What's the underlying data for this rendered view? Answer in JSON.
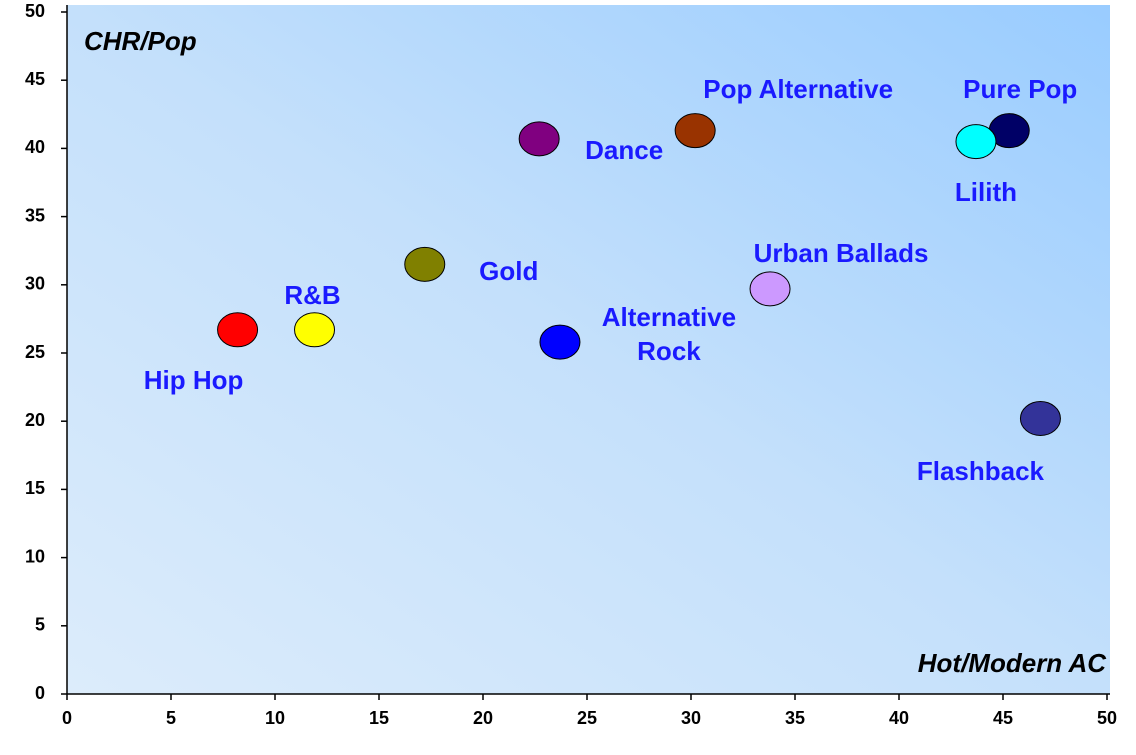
{
  "chart_data": {
    "type": "scatter",
    "x_label": "Hot/Modern AC",
    "y_label": "CHR/Pop",
    "xlim": [
      0,
      50
    ],
    "xticks": [
      0,
      5,
      10,
      15,
      20,
      25,
      30,
      35,
      40,
      45,
      50
    ],
    "ylim": [
      0,
      50
    ],
    "yticks": [
      0,
      5,
      10,
      15,
      20,
      25,
      30,
      35,
      40,
      45,
      50
    ],
    "series": [
      {
        "name": "Hip Hop",
        "color": "#ff0000",
        "x": [
          8.2
        ],
        "values": [
          26.7
        ]
      },
      {
        "name": "R&B",
        "color": "#ffff00",
        "x": [
          11.9
        ],
        "values": [
          26.7
        ]
      },
      {
        "name": "Gold",
        "color": "#808000",
        "x": [
          17.2
        ],
        "values": [
          31.5
        ]
      },
      {
        "name": "Dance",
        "color": "#800080",
        "x": [
          22.7
        ],
        "values": [
          40.7
        ]
      },
      {
        "name": "Pop Alternative",
        "color": "#993300",
        "x": [
          30.2
        ],
        "values": [
          41.3
        ]
      },
      {
        "name": "Alternative Rock",
        "color": "#0000ff",
        "x": [
          23.7
        ],
        "values": [
          25.8
        ]
      },
      {
        "name": "Urban Ballads",
        "color": "#cc99ff",
        "x": [
          33.8
        ],
        "values": [
          29.7
        ]
      },
      {
        "name": "Pure Pop",
        "color": "#000066",
        "x": [
          45.3
        ],
        "values": [
          41.3
        ]
      },
      {
        "name": "Lilith",
        "color": "#00ffff",
        "x": [
          43.7
        ],
        "values": [
          40.5
        ]
      },
      {
        "name": "Flashback",
        "color": "#333399",
        "x": [
          46.8
        ],
        "values": [
          20.2
        ]
      }
    ]
  }
}
